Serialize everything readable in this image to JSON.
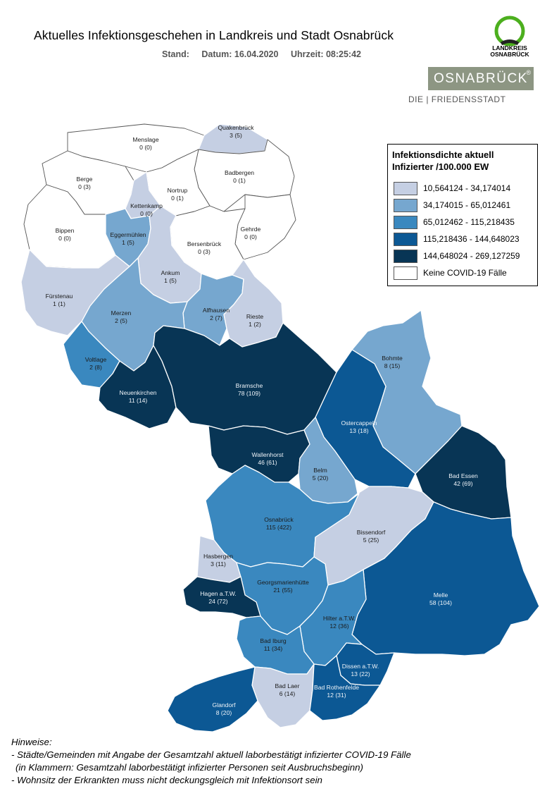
{
  "header": {
    "title": "Aktuelles Infektionsgeschehen in Landkreis und Stadt Osnabrück",
    "stand_label": "Stand:",
    "date": "Datum: 16.04.2020",
    "time": "Uhrzeit: 08:25:42"
  },
  "logos": {
    "landkreis_line1": "LANDKREIS",
    "landkreis_line2": "OSNABRÜCK",
    "stadt_name": "OSNABRÜCK",
    "stadt_mark": "®",
    "stadt_subtitle": "DIE | FRIEDENSSTADT",
    "landkreis_ring_color": "#4caf1e"
  },
  "legend": {
    "title_line1": "Infektionsdichte aktuell",
    "title_line2": "Infizierter /100.000 EW",
    "classes": [
      {
        "range": "10,564124 - 34,174014",
        "color": "#c5cfe3"
      },
      {
        "range": "34,174015 - 65,012461",
        "color": "#76a7cf"
      },
      {
        "range": "65,012462 - 115,218435",
        "color": "#3a88bf"
      },
      {
        "range": "115,218436 - 144,648023",
        "color": "#0c5894"
      },
      {
        "range": "144,648024 - 269,127259",
        "color": "#083555"
      },
      {
        "range": "Keine COVID-19 Fälle",
        "color": "#ffffff"
      }
    ]
  },
  "regions": [
    {
      "name": "Menslage",
      "value": "0 (0)"
    },
    {
      "name": "Quakenbrück",
      "value": "3 (5)"
    },
    {
      "name": "Berge",
      "value": "0 (3)"
    },
    {
      "name": "Badbergen",
      "value": "0 (1)"
    },
    {
      "name": "Nortrup",
      "value": "0 (1)"
    },
    {
      "name": "Kettenkamp",
      "value": "0 (0)"
    },
    {
      "name": "Bippen",
      "value": "0 (0)"
    },
    {
      "name": "Eggermühlen",
      "value": "1 (5)"
    },
    {
      "name": "Gehrde",
      "value": "0 (0)"
    },
    {
      "name": "Bersenbrück",
      "value": "0 (3)"
    },
    {
      "name": "Ankum",
      "value": "1 (5)"
    },
    {
      "name": "Fürstenau",
      "value": "1 (1)"
    },
    {
      "name": "Alfhausen",
      "value": "2 (7)"
    },
    {
      "name": "Rieste",
      "value": "1 (2)"
    },
    {
      "name": "Merzen",
      "value": "2 (5)"
    },
    {
      "name": "Voltlage",
      "value": "2 (8)"
    },
    {
      "name": "Neuenkirchen",
      "value": "11 (14)"
    },
    {
      "name": "Bramsche",
      "value": "78 (109)"
    },
    {
      "name": "Bohmte",
      "value": "8 (15)"
    },
    {
      "name": "Ostercappeln",
      "value": "13 (18)"
    },
    {
      "name": "Wallenhorst",
      "value": "46 (61)"
    },
    {
      "name": "Belm",
      "value": "5 (20)"
    },
    {
      "name": "Bad Essen",
      "value": "42 (69)"
    },
    {
      "name": "Osnabrück",
      "value": "115 (422)"
    },
    {
      "name": "Bissendorf",
      "value": "5 (25)"
    },
    {
      "name": "Hasbergen",
      "value": "3 (11)"
    },
    {
      "name": "Georgsmarienhütte",
      "value": "21 (55)"
    },
    {
      "name": "Hagen a.T.W.",
      "value": "24 (72)"
    },
    {
      "name": "Melle",
      "value": "58 (104)"
    },
    {
      "name": "Hilter a.T.W.",
      "value": "12 (36)"
    },
    {
      "name": "Bad Iburg",
      "value": "11 (34)"
    },
    {
      "name": "Dissen a.T.W.",
      "value": "13 (22)"
    },
    {
      "name": "Bad Laer",
      "value": "6 (14)"
    },
    {
      "name": "Bad Rothenfelde",
      "value": "12 (31)"
    },
    {
      "name": "Glandorf",
      "value": "8 (20)"
    }
  ],
  "notes": {
    "heading": "Hinweise:",
    "line1": "- Städte/Gemeinden mit Angabe der Gesamtzahl aktuell laborbestätigt infizierter COVID-19 Fälle",
    "line2": "(in Klammern: Gesamtzahl laborbestätigt infizierter Personen seit Ausbruchsbeginn)",
    "line3": "- Wohnsitz der Erkrankten muss nicht deckungsgleich mit Infektionsort sein"
  }
}
